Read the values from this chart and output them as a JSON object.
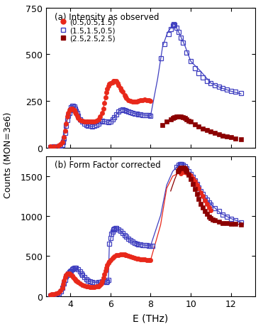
{
  "title_a": "(a) Intensity as observed",
  "title_b": "(b) Form Factor corrected",
  "ylabel": "Counts (MON=3e6)",
  "xlabel": "E (THz)",
  "ylim_a": [
    0,
    750
  ],
  "ylim_b": [
    0,
    1750
  ],
  "xlim": [
    2.8,
    13.2
  ],
  "yticks_a": [
    0,
    250,
    500,
    750
  ],
  "yticks_b": [
    0,
    500,
    1000,
    1500
  ],
  "xticks": [
    4,
    6,
    8,
    10,
    12
  ],
  "color_red": "#e8281a",
  "color_blue": "#4040c0",
  "color_darkred": "#8b0000",
  "legend_labels": [
    "(0.5,0.5,1.5)",
    "(1.5,1.5,0.5)",
    "(2.5,2.5,2.5)"
  ],
  "panel_a_red_scatter": [
    [
      3.0,
      5
    ],
    [
      3.2,
      8
    ],
    [
      3.4,
      10
    ],
    [
      3.5,
      18
    ],
    [
      3.6,
      28
    ],
    [
      3.7,
      55
    ],
    [
      3.75,
      90
    ],
    [
      3.8,
      130
    ],
    [
      3.85,
      165
    ],
    [
      3.9,
      185
    ],
    [
      3.95,
      200
    ],
    [
      4.0,
      205
    ],
    [
      4.05,
      210
    ],
    [
      4.1,
      210
    ],
    [
      4.15,
      205
    ],
    [
      4.2,
      200
    ],
    [
      4.25,
      190
    ],
    [
      4.3,
      180
    ],
    [
      4.35,
      170
    ],
    [
      4.4,
      160
    ],
    [
      4.5,
      148
    ],
    [
      4.6,
      142
    ],
    [
      4.7,
      138
    ],
    [
      4.8,
      138
    ],
    [
      4.9,
      140
    ],
    [
      5.0,
      140
    ],
    [
      5.1,
      140
    ],
    [
      5.2,
      140
    ],
    [
      5.3,
      142
    ],
    [
      5.4,
      150
    ],
    [
      5.5,
      165
    ],
    [
      5.6,
      185
    ],
    [
      5.65,
      210
    ],
    [
      5.7,
      240
    ],
    [
      5.75,
      270
    ],
    [
      5.8,
      295
    ],
    [
      5.85,
      315
    ],
    [
      5.9,
      330
    ],
    [
      5.95,
      340
    ],
    [
      6.0,
      345
    ],
    [
      6.1,
      350
    ],
    [
      6.15,
      355
    ],
    [
      6.2,
      358
    ],
    [
      6.3,
      355
    ],
    [
      6.35,
      345
    ],
    [
      6.4,
      335
    ],
    [
      6.5,
      318
    ],
    [
      6.55,
      308
    ],
    [
      6.6,
      298
    ],
    [
      6.7,
      280
    ],
    [
      6.75,
      272
    ],
    [
      6.8,
      265
    ],
    [
      6.9,
      255
    ],
    [
      7.0,
      250
    ],
    [
      7.1,
      248
    ],
    [
      7.2,
      248
    ],
    [
      7.3,
      248
    ],
    [
      7.4,
      250
    ],
    [
      7.5,
      252
    ],
    [
      7.6,
      255
    ],
    [
      7.7,
      256
    ],
    [
      7.8,
      255
    ],
    [
      7.9,
      252
    ],
    [
      8.0,
      250
    ]
  ],
  "panel_a_red_line": [
    [
      3.0,
      4
    ],
    [
      3.3,
      8
    ],
    [
      3.5,
      16
    ],
    [
      3.65,
      60
    ],
    [
      3.8,
      140
    ],
    [
      3.95,
      200
    ],
    [
      4.05,
      210
    ],
    [
      4.2,
      200
    ],
    [
      4.4,
      162
    ],
    [
      4.6,
      142
    ],
    [
      4.8,
      138
    ],
    [
      5.0,
      140
    ],
    [
      5.2,
      140
    ],
    [
      5.4,
      150
    ],
    [
      5.6,
      185
    ],
    [
      5.75,
      265
    ],
    [
      5.9,
      330
    ],
    [
      6.0,
      345
    ],
    [
      6.15,
      355
    ],
    [
      6.3,
      352
    ],
    [
      6.5,
      318
    ],
    [
      6.7,
      278
    ],
    [
      6.9,
      255
    ],
    [
      7.1,
      248
    ],
    [
      7.3,
      248
    ],
    [
      7.5,
      252
    ],
    [
      7.7,
      255
    ],
    [
      8.0,
      250
    ]
  ],
  "panel_a_blue_scatter": [
    [
      3.0,
      3
    ],
    [
      3.2,
      5
    ],
    [
      3.4,
      8
    ],
    [
      3.5,
      10
    ],
    [
      3.6,
      15
    ],
    [
      3.65,
      28
    ],
    [
      3.7,
      50
    ],
    [
      3.75,
      80
    ],
    [
      3.8,
      118
    ],
    [
      3.85,
      148
    ],
    [
      3.9,
      170
    ],
    [
      3.95,
      185
    ],
    [
      4.0,
      200
    ],
    [
      4.05,
      215
    ],
    [
      4.1,
      222
    ],
    [
      4.15,
      225
    ],
    [
      4.2,
      220
    ],
    [
      4.25,
      210
    ],
    [
      4.3,
      198
    ],
    [
      4.35,
      185
    ],
    [
      4.4,
      170
    ],
    [
      4.5,
      152
    ],
    [
      4.6,
      140
    ],
    [
      4.7,
      130
    ],
    [
      4.8,
      122
    ],
    [
      4.9,
      118
    ],
    [
      5.0,
      115
    ],
    [
      5.1,
      112
    ],
    [
      5.2,
      115
    ],
    [
      5.3,
      122
    ],
    [
      5.4,
      130
    ],
    [
      5.5,
      138
    ],
    [
      5.6,
      142
    ],
    [
      5.7,
      140
    ],
    [
      5.8,
      138
    ],
    [
      5.9,
      135
    ],
    [
      6.0,
      140
    ],
    [
      6.1,
      150
    ],
    [
      6.2,
      162
    ],
    [
      6.3,
      178
    ],
    [
      6.4,
      192
    ],
    [
      6.5,
      202
    ],
    [
      6.6,
      205
    ],
    [
      6.7,
      202
    ],
    [
      6.8,
      198
    ],
    [
      6.9,
      192
    ],
    [
      7.0,
      188
    ],
    [
      7.1,
      185
    ],
    [
      7.2,
      183
    ],
    [
      7.3,
      180
    ],
    [
      7.4,
      178
    ],
    [
      7.5,
      176
    ],
    [
      7.6,
      175
    ],
    [
      7.7,
      174
    ],
    [
      7.8,
      173
    ],
    [
      7.9,
      172
    ],
    [
      8.0,
      170
    ],
    [
      8.5,
      480
    ],
    [
      8.7,
      555
    ],
    [
      8.9,
      608
    ],
    [
      9.0,
      635
    ],
    [
      9.1,
      652
    ],
    [
      9.15,
      660
    ],
    [
      9.2,
      658
    ],
    [
      9.3,
      642
    ],
    [
      9.4,
      618
    ],
    [
      9.5,
      590
    ],
    [
      9.6,
      562
    ],
    [
      9.8,
      508
    ],
    [
      10.0,
      462
    ],
    [
      10.2,
      425
    ],
    [
      10.4,
      398
    ],
    [
      10.6,
      375
    ],
    [
      10.8,
      358
    ],
    [
      11.0,
      345
    ],
    [
      11.2,
      335
    ],
    [
      11.4,
      325
    ],
    [
      11.6,
      318
    ],
    [
      11.8,
      312
    ],
    [
      12.0,
      305
    ],
    [
      12.2,
      298
    ],
    [
      12.5,
      290
    ]
  ],
  "panel_a_blue_line": [
    [
      3.0,
      2
    ],
    [
      3.3,
      5
    ],
    [
      3.5,
      9
    ],
    [
      3.62,
      30
    ],
    [
      3.75,
      88
    ],
    [
      3.9,
      168
    ],
    [
      4.05,
      215
    ],
    [
      4.15,
      225
    ],
    [
      4.3,
      198
    ],
    [
      4.5,
      152
    ],
    [
      4.7,
      130
    ],
    [
      4.9,
      118
    ],
    [
      5.1,
      112
    ],
    [
      5.3,
      122
    ],
    [
      5.5,
      138
    ],
    [
      5.7,
      140
    ],
    [
      5.9,
      135
    ],
    [
      6.1,
      152
    ],
    [
      6.3,
      178
    ],
    [
      6.5,
      202
    ],
    [
      6.65,
      205
    ],
    [
      6.8,
      198
    ],
    [
      7.0,
      188
    ],
    [
      7.2,
      183
    ],
    [
      7.5,
      176
    ],
    [
      7.8,
      173
    ],
    [
      8.0,
      170
    ],
    [
      8.35,
      368
    ],
    [
      8.6,
      542
    ],
    [
      8.85,
      618
    ],
    [
      9.1,
      655
    ],
    [
      9.2,
      660
    ],
    [
      9.4,
      618
    ],
    [
      9.7,
      548
    ],
    [
      10.0,
      462
    ],
    [
      10.5,
      408
    ],
    [
      11.0,
      345
    ],
    [
      11.5,
      320
    ],
    [
      12.0,
      302
    ],
    [
      12.5,
      288
    ]
  ],
  "panel_a_darkred_scatter": [
    [
      8.6,
      120
    ],
    [
      8.8,
      138
    ],
    [
      9.0,
      152
    ],
    [
      9.1,
      158
    ],
    [
      9.2,
      162
    ],
    [
      9.3,
      165
    ],
    [
      9.4,
      165
    ],
    [
      9.5,
      165
    ],
    [
      9.6,
      162
    ],
    [
      9.7,
      158
    ],
    [
      9.8,
      152
    ],
    [
      9.9,
      145
    ],
    [
      10.0,
      138
    ],
    [
      10.2,
      125
    ],
    [
      10.4,
      112
    ],
    [
      10.6,
      102
    ],
    [
      10.8,
      95
    ],
    [
      11.0,
      88
    ],
    [
      11.2,
      80
    ],
    [
      11.4,
      72
    ],
    [
      11.6,
      65
    ],
    [
      11.8,
      60
    ],
    [
      12.0,
      55
    ],
    [
      12.2,
      50
    ],
    [
      12.5,
      45
    ]
  ],
  "panel_b_red_scatter": [
    [
      3.0,
      15
    ],
    [
      3.1,
      20
    ],
    [
      3.2,
      25
    ],
    [
      3.3,
      32
    ],
    [
      3.4,
      45
    ],
    [
      3.5,
      65
    ],
    [
      3.6,
      105
    ],
    [
      3.65,
      148
    ],
    [
      3.7,
      195
    ],
    [
      3.75,
      235
    ],
    [
      3.8,
      265
    ],
    [
      3.85,
      282
    ],
    [
      3.9,
      285
    ],
    [
      3.95,
      282
    ],
    [
      4.0,
      275
    ],
    [
      4.05,
      265
    ],
    [
      4.1,
      252
    ],
    [
      4.15,
      238
    ],
    [
      4.2,
      222
    ],
    [
      4.25,
      208
    ],
    [
      4.3,
      195
    ],
    [
      4.35,
      182
    ],
    [
      4.4,
      170
    ],
    [
      4.5,
      152
    ],
    [
      4.6,
      140
    ],
    [
      4.7,
      130
    ],
    [
      4.8,
      122
    ],
    [
      4.9,
      118
    ],
    [
      5.0,
      115
    ],
    [
      5.1,
      115
    ],
    [
      5.2,
      115
    ],
    [
      5.3,
      118
    ],
    [
      5.4,
      125
    ],
    [
      5.5,
      138
    ],
    [
      5.55,
      155
    ],
    [
      5.6,
      185
    ],
    [
      5.65,
      225
    ],
    [
      5.7,
      268
    ],
    [
      5.75,
      315
    ],
    [
      5.8,
      355
    ],
    [
      5.85,
      388
    ],
    [
      5.9,
      415
    ],
    [
      5.95,
      435
    ],
    [
      6.0,
      452
    ],
    [
      6.1,
      478
    ],
    [
      6.2,
      495
    ],
    [
      6.3,
      508
    ],
    [
      6.4,
      515
    ],
    [
      6.5,
      520
    ],
    [
      6.6,
      522
    ],
    [
      6.7,
      520
    ],
    [
      6.75,
      515
    ],
    [
      6.8,
      510
    ],
    [
      6.9,
      500
    ],
    [
      7.0,
      490
    ],
    [
      7.1,
      482
    ],
    [
      7.2,
      475
    ],
    [
      7.3,
      470
    ],
    [
      7.4,
      465
    ],
    [
      7.5,
      462
    ],
    [
      7.6,
      458
    ],
    [
      7.7,
      455
    ],
    [
      7.8,
      452
    ],
    [
      7.9,
      450
    ],
    [
      8.0,
      448
    ],
    [
      9.5,
      1530
    ],
    [
      9.6,
      1548
    ],
    [
      9.7,
      1552
    ],
    [
      9.75,
      1550
    ],
    [
      9.8,
      1545
    ],
    [
      9.9,
      1528
    ],
    [
      10.0,
      1502
    ],
    [
      10.1,
      1472
    ],
    [
      10.2,
      1435
    ],
    [
      10.3,
      1392
    ],
    [
      10.4,
      1345
    ],
    [
      10.5,
      1295
    ],
    [
      10.6,
      1245
    ],
    [
      10.7,
      1198
    ],
    [
      10.8,
      1152
    ],
    [
      10.9,
      1110
    ],
    [
      11.0,
      1070
    ]
  ],
  "panel_b_red_line": [
    [
      3.0,
      12
    ],
    [
      3.3,
      25
    ],
    [
      3.5,
      58
    ],
    [
      3.65,
      148
    ],
    [
      3.8,
      262
    ],
    [
      3.95,
      282
    ],
    [
      4.1,
      255
    ],
    [
      4.3,
      195
    ],
    [
      4.5,
      152
    ],
    [
      4.7,
      130
    ],
    [
      4.9,
      118
    ],
    [
      5.1,
      115
    ],
    [
      5.3,
      118
    ],
    [
      5.5,
      138
    ],
    [
      5.65,
      222
    ],
    [
      5.8,
      352
    ],
    [
      5.95,
      432
    ],
    [
      6.1,
      478
    ],
    [
      6.4,
      515
    ],
    [
      6.6,
      522
    ],
    [
      6.8,
      510
    ],
    [
      7.0,
      490
    ],
    [
      7.3,
      470
    ],
    [
      7.6,
      458
    ],
    [
      8.0,
      448
    ],
    [
      8.5,
      890
    ],
    [
      8.8,
      1345
    ],
    [
      9.1,
      1498
    ],
    [
      9.5,
      1548
    ],
    [
      9.7,
      1552
    ],
    [
      9.9,
      1528
    ],
    [
      10.1,
      1472
    ],
    [
      10.4,
      1348
    ],
    [
      10.7,
      1198
    ],
    [
      11.0,
      1068
    ]
  ],
  "panel_b_blue_scatter": [
    [
      3.0,
      5
    ],
    [
      3.2,
      10
    ],
    [
      3.35,
      18
    ],
    [
      3.45,
      32
    ],
    [
      3.55,
      62
    ],
    [
      3.62,
      102
    ],
    [
      3.68,
      155
    ],
    [
      3.75,
      205
    ],
    [
      3.8,
      245
    ],
    [
      3.85,
      265
    ],
    [
      3.9,
      282
    ],
    [
      3.95,
      295
    ],
    [
      4.0,
      305
    ],
    [
      4.05,
      320
    ],
    [
      4.1,
      335
    ],
    [
      4.15,
      345
    ],
    [
      4.2,
      352
    ],
    [
      4.25,
      355
    ],
    [
      4.3,
      352
    ],
    [
      4.4,
      335
    ],
    [
      4.5,
      305
    ],
    [
      4.55,
      285
    ],
    [
      4.6,
      262
    ],
    [
      4.7,
      232
    ],
    [
      4.8,
      208
    ],
    [
      4.9,
      192
    ],
    [
      5.0,
      180
    ],
    [
      5.1,
      172
    ],
    [
      5.2,
      168
    ],
    [
      5.3,
      168
    ],
    [
      5.4,
      170
    ],
    [
      5.5,
      175
    ],
    [
      5.6,
      180
    ],
    [
      5.7,
      180
    ],
    [
      5.8,
      178
    ],
    [
      5.85,
      185
    ],
    [
      5.9,
      198
    ],
    [
      5.95,
      652
    ],
    [
      6.0,
      728
    ],
    [
      6.05,
      778
    ],
    [
      6.1,
      808
    ],
    [
      6.15,
      828
    ],
    [
      6.2,
      842
    ],
    [
      6.25,
      848
    ],
    [
      6.3,
      848
    ],
    [
      6.4,
      835
    ],
    [
      6.5,
      815
    ],
    [
      6.6,
      790
    ],
    [
      6.7,
      762
    ],
    [
      6.8,
      738
    ],
    [
      6.9,
      715
    ],
    [
      7.0,
      695
    ],
    [
      7.1,
      678
    ],
    [
      7.2,
      665
    ],
    [
      7.3,
      655
    ],
    [
      7.4,
      648
    ],
    [
      7.5,
      642
    ],
    [
      7.6,
      638
    ],
    [
      7.7,
      635
    ],
    [
      7.8,
      632
    ],
    [
      7.9,
      630
    ],
    [
      8.0,
      628
    ],
    [
      8.1,
      628
    ],
    [
      9.3,
      1615
    ],
    [
      9.4,
      1635
    ],
    [
      9.45,
      1645
    ],
    [
      9.5,
      1648
    ],
    [
      9.55,
      1648
    ],
    [
      9.6,
      1642
    ],
    [
      9.7,
      1622
    ],
    [
      9.8,
      1595
    ],
    [
      9.9,
      1562
    ],
    [
      10.0,
      1525
    ],
    [
      10.1,
      1485
    ],
    [
      10.2,
      1442
    ],
    [
      10.3,
      1398
    ],
    [
      10.4,
      1355
    ],
    [
      10.5,
      1312
    ],
    [
      10.6,
      1272
    ],
    [
      10.7,
      1235
    ],
    [
      10.8,
      1202
    ],
    [
      10.9,
      1172
    ],
    [
      11.0,
      1145
    ],
    [
      11.2,
      1098
    ],
    [
      11.4,
      1058
    ],
    [
      11.6,
      1022
    ],
    [
      11.8,
      992
    ],
    [
      12.0,
      968
    ],
    [
      12.2,
      948
    ],
    [
      12.5,
      922
    ]
  ],
  "panel_b_blue_line": [
    [
      3.0,
      3
    ],
    [
      3.3,
      10
    ],
    [
      3.5,
      48
    ],
    [
      3.65,
      142
    ],
    [
      3.8,
      248
    ],
    [
      3.95,
      295
    ],
    [
      4.1,
      335
    ],
    [
      4.25,
      355
    ],
    [
      4.4,
      335
    ],
    [
      4.6,
      262
    ],
    [
      4.8,
      208
    ],
    [
      5.0,
      180
    ],
    [
      5.2,
      168
    ],
    [
      5.4,
      170
    ],
    [
      5.6,
      180
    ],
    [
      5.8,
      178
    ],
    [
      5.9,
      198
    ],
    [
      5.95,
      648
    ],
    [
      6.1,
      808
    ],
    [
      6.25,
      848
    ],
    [
      6.5,
      815
    ],
    [
      6.7,
      762
    ],
    [
      6.9,
      715
    ],
    [
      7.1,
      678
    ],
    [
      7.4,
      648
    ],
    [
      7.7,
      635
    ],
    [
      8.0,
      628
    ],
    [
      8.5,
      1008
    ],
    [
      8.8,
      1385
    ],
    [
      9.1,
      1558
    ],
    [
      9.4,
      1638
    ],
    [
      9.5,
      1648
    ],
    [
      9.6,
      1642
    ],
    [
      9.8,
      1595
    ],
    [
      10.0,
      1525
    ],
    [
      10.3,
      1398
    ],
    [
      10.6,
      1272
    ],
    [
      11.0,
      1145
    ],
    [
      11.5,
      1032
    ],
    [
      12.0,
      968
    ],
    [
      12.5,
      922
    ]
  ],
  "panel_b_darkred_scatter": [
    [
      9.35,
      1558
    ],
    [
      9.4,
      1578
    ],
    [
      9.45,
      1592
    ],
    [
      9.5,
      1602
    ],
    [
      9.55,
      1608
    ],
    [
      9.6,
      1608
    ],
    [
      9.65,
      1602
    ],
    [
      9.7,
      1592
    ],
    [
      9.75,
      1578
    ],
    [
      9.8,
      1558
    ],
    [
      9.9,
      1512
    ],
    [
      10.0,
      1458
    ],
    [
      10.1,
      1398
    ],
    [
      10.2,
      1335
    ],
    [
      10.3,
      1272
    ],
    [
      10.4,
      1212
    ],
    [
      10.5,
      1155
    ],
    [
      10.6,
      1105
    ],
    [
      10.7,
      1062
    ],
    [
      10.8,
      1025
    ],
    [
      10.9,
      995
    ],
    [
      11.0,
      975
    ],
    [
      11.1,
      958
    ],
    [
      11.2,
      945
    ],
    [
      11.4,
      928
    ],
    [
      11.6,
      915
    ],
    [
      11.8,
      908
    ],
    [
      12.0,
      902
    ],
    [
      12.2,
      898
    ],
    [
      12.5,
      895
    ]
  ],
  "panel_b_darkred_line": [
    [
      9.0,
      1312
    ],
    [
      9.2,
      1458
    ],
    [
      9.4,
      1578
    ],
    [
      9.55,
      1608
    ],
    [
      9.65,
      1602
    ],
    [
      9.8,
      1558
    ],
    [
      9.9,
      1512
    ],
    [
      10.05,
      1445
    ],
    [
      10.2,
      1335
    ],
    [
      10.4,
      1212
    ],
    [
      10.6,
      1105
    ],
    [
      10.8,
      1025
    ],
    [
      11.0,
      975
    ],
    [
      11.3,
      942
    ],
    [
      11.6,
      918
    ],
    [
      12.0,
      902
    ],
    [
      12.5,
      895
    ]
  ]
}
